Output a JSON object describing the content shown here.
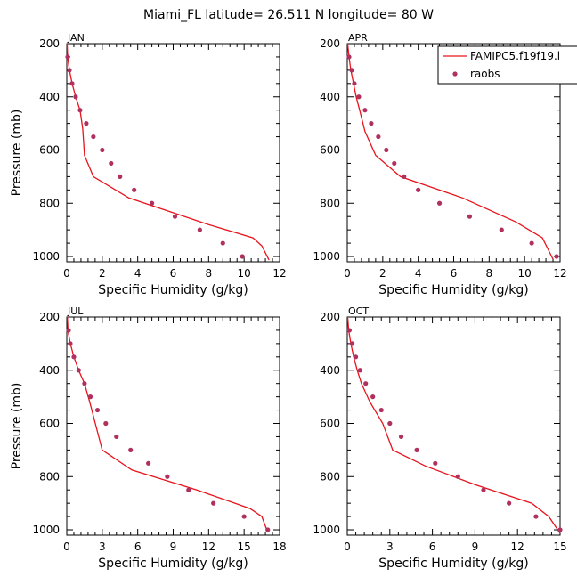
{
  "figure": {
    "title": "Miami_FL  latitude= 26.511 N longitude= 80 W"
  },
  "colors": {
    "model": "#e8141c",
    "obs": "#b03060",
    "axis": "#000000"
  },
  "legend": {
    "placement": "top-right of APR panel",
    "entries": [
      {
        "label": "FAMIPC5.f19f19.l",
        "style": "line",
        "color": "#e8141c"
      },
      {
        "label": "raobs",
        "style": "marker",
        "color": "#b03060"
      }
    ]
  },
  "chart_data": [
    {
      "type": "line",
      "panel": "JAN",
      "xlabel": "Specific Humidity (g/kg)",
      "ylabel": "Pressure (mb)",
      "xlim": [
        0,
        12
      ],
      "ylim": [
        1020,
        200
      ],
      "xticks": [
        0,
        2,
        4,
        6,
        8,
        10,
        12
      ],
      "yticks": [
        200,
        400,
        600,
        800,
        1000
      ],
      "model": {
        "name": "FAMIPC5.f19f19.l",
        "x": [
          0.02,
          0.05,
          0.15,
          0.3,
          0.5,
          0.75,
          0.9,
          1.0,
          1.5,
          3.5,
          8.0,
          10.5,
          11.0,
          11.4
        ],
        "y": [
          200,
          250,
          300,
          350,
          400,
          450,
          520,
          620,
          700,
          780,
          880,
          930,
          960,
          1013
        ]
      },
      "obs": {
        "name": "raobs",
        "x": [
          0.05,
          0.15,
          0.3,
          0.5,
          0.75,
          1.1,
          1.5,
          2.0,
          2.5,
          3.0,
          3.8,
          4.8,
          6.1,
          7.5,
          8.8,
          9.9
        ],
        "y": [
          250,
          300,
          350,
          400,
          450,
          500,
          550,
          600,
          650,
          700,
          750,
          800,
          850,
          900,
          950,
          1000
        ]
      }
    },
    {
      "type": "line",
      "panel": "APR",
      "xlabel": "Specific Humidity (g/kg)",
      "ylabel": "",
      "xlim": [
        0,
        12
      ],
      "ylim": [
        1020,
        200
      ],
      "xticks": [
        0,
        2,
        4,
        6,
        8,
        10,
        12
      ],
      "yticks": [
        200,
        400,
        600,
        800,
        1000
      ],
      "model": {
        "name": "FAMIPC5.f19f19.l",
        "x": [
          0.02,
          0.1,
          0.2,
          0.35,
          0.5,
          0.7,
          1.0,
          1.6,
          3.0,
          6.5,
          9.5,
          11.0,
          11.6
        ],
        "y": [
          200,
          250,
          300,
          350,
          400,
          450,
          530,
          620,
          700,
          780,
          870,
          930,
          1010
        ]
      },
      "obs": {
        "name": "raobs",
        "x": [
          0.1,
          0.25,
          0.4,
          0.65,
          1.0,
          1.35,
          1.75,
          2.2,
          2.65,
          3.2,
          4.0,
          5.2,
          6.9,
          8.7,
          10.4,
          11.8
        ],
        "y": [
          250,
          300,
          350,
          400,
          450,
          500,
          550,
          600,
          650,
          700,
          750,
          800,
          850,
          900,
          950,
          1000
        ]
      }
    },
    {
      "type": "line",
      "panel": "JUL",
      "xlabel": "Specific Humidity (g/kg)",
      "ylabel": "Pressure (mb)",
      "xlim": [
        0,
        18
      ],
      "ylim": [
        1020,
        200
      ],
      "xticks": [
        0,
        3,
        6,
        9,
        12,
        15,
        18
      ],
      "yticks": [
        200,
        400,
        600,
        800,
        1000
      ],
      "model": {
        "name": "FAMIPC5.f19f19.l",
        "x": [
          0.05,
          0.1,
          0.3,
          0.6,
          1.0,
          1.5,
          2.0,
          3.0,
          5.5,
          11.0,
          15.5,
          16.5,
          17.0
        ],
        "y": [
          200,
          250,
          300,
          350,
          400,
          450,
          530,
          700,
          775,
          850,
          920,
          950,
          1010
        ]
      },
      "obs": {
        "name": "raobs",
        "x": [
          0.15,
          0.3,
          0.6,
          1.0,
          1.5,
          2.0,
          2.6,
          3.3,
          4.2,
          5.4,
          6.9,
          8.5,
          10.3,
          12.4,
          15.0,
          17.0
        ],
        "y": [
          250,
          300,
          350,
          400,
          450,
          500,
          550,
          600,
          650,
          700,
          750,
          800,
          850,
          900,
          950,
          1000
        ]
      }
    },
    {
      "type": "line",
      "panel": "OCT",
      "xlabel": "Specific Humidity (g/kg)",
      "ylabel": "",
      "xlim": [
        0,
        15
      ],
      "ylim": [
        1020,
        200
      ],
      "xticks": [
        0,
        3,
        6,
        9,
        12,
        15
      ],
      "yticks": [
        200,
        400,
        600,
        800,
        1000
      ],
      "model": {
        "name": "FAMIPC5.f19f19.l",
        "x": [
          0.03,
          0.1,
          0.25,
          0.45,
          0.7,
          1.0,
          1.6,
          2.5,
          3.2,
          5.5,
          9.0,
          13.0,
          14.2,
          15.0
        ],
        "y": [
          200,
          250,
          300,
          350,
          400,
          450,
          520,
          600,
          700,
          760,
          830,
          900,
          950,
          1013
        ]
      },
      "obs": {
        "name": "raobs",
        "x": [
          0.15,
          0.35,
          0.6,
          0.9,
          1.3,
          1.8,
          2.4,
          3.0,
          3.8,
          4.9,
          6.2,
          7.8,
          9.6,
          11.4,
          13.3,
          15.0
        ],
        "y": [
          250,
          300,
          350,
          400,
          450,
          500,
          550,
          600,
          650,
          700,
          750,
          800,
          850,
          900,
          950,
          1000
        ]
      }
    }
  ]
}
